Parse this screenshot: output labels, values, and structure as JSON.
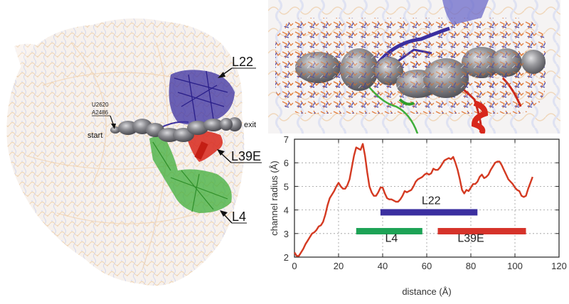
{
  "figure": {
    "left_panel": {
      "description": "Ribosome large subunit structure with exit tunnel channel",
      "labels": {
        "l22": "L22",
        "l39e": "L39E",
        "l4": "L4",
        "start": "start",
        "exit": "exit",
        "residue_1": "U2620",
        "residue_2": "A2486"
      },
      "colors": {
        "rna_orange": "#f2c79a",
        "rna_blue": "#c6cbe6",
        "l22": "#3b2fa0",
        "l39e": "#d8281c",
        "l4": "#3fae3a",
        "tunnel": "#7d7d82"
      }
    },
    "inset_panel": {
      "description": "Close-up of tunnel with surrounding residues"
    }
  },
  "chart_data": {
    "type": "line",
    "title": "",
    "xlabel": "distance (Å)",
    "ylabel": "channel radius (Å)",
    "xlim": [
      0,
      120
    ],
    "ylim": [
      2,
      7
    ],
    "xticks": [
      0,
      20,
      40,
      60,
      80,
      100,
      120
    ],
    "yticks": [
      2,
      3,
      4,
      5,
      6,
      7
    ],
    "grid": true,
    "series": [
      {
        "name": "channel radius",
        "color": "#d43a22",
        "x": [
          0,
          1,
          2,
          3,
          4,
          5,
          6,
          7,
          8,
          9,
          10,
          11,
          12,
          13,
          14,
          15,
          16,
          17,
          18,
          19,
          20,
          21,
          22,
          23,
          24,
          25,
          26,
          27,
          28,
          29,
          30,
          31,
          32,
          33,
          34,
          35,
          36,
          37,
          38,
          39,
          40,
          41,
          42,
          43,
          44,
          45,
          46,
          47,
          48,
          49,
          50,
          51,
          52,
          53,
          54,
          55,
          56,
          57,
          58,
          59,
          60,
          61,
          62,
          63,
          64,
          65,
          66,
          67,
          68,
          69,
          70,
          71,
          72,
          73,
          74,
          75,
          76,
          77,
          78,
          79,
          80,
          81,
          82,
          83,
          84,
          85,
          86,
          87,
          88,
          89,
          90,
          91,
          92,
          93,
          94,
          95,
          96,
          97,
          98,
          99,
          100,
          101,
          102,
          103,
          104,
          105,
          106,
          107,
          108
        ],
        "y": [
          2.2,
          2.05,
          2.05,
          2.2,
          2.35,
          2.55,
          2.7,
          2.85,
          3.0,
          3.05,
          3.15,
          3.3,
          3.35,
          3.5,
          3.8,
          4.2,
          4.5,
          4.65,
          4.8,
          5.0,
          5.15,
          5.0,
          4.9,
          4.9,
          5.05,
          5.3,
          5.8,
          6.3,
          6.65,
          6.6,
          6.55,
          6.8,
          6.3,
          5.6,
          5.0,
          4.75,
          4.6,
          4.6,
          4.75,
          4.95,
          4.95,
          4.7,
          4.5,
          4.45,
          4.45,
          4.4,
          4.35,
          4.35,
          4.45,
          4.6,
          4.8,
          4.75,
          4.8,
          4.85,
          5.0,
          5.2,
          5.3,
          5.35,
          5.4,
          5.5,
          5.55,
          5.5,
          5.55,
          5.75,
          5.7,
          5.7,
          5.8,
          5.95,
          6.1,
          6.15,
          6.2,
          6.15,
          6.25,
          6.0,
          5.7,
          5.3,
          4.85,
          4.7,
          4.85,
          4.8,
          4.95,
          5.1,
          5.1,
          5.2,
          5.4,
          5.5,
          5.35,
          5.4,
          5.5,
          5.7,
          5.85,
          6.0,
          6.05,
          6.05,
          5.9,
          5.7,
          5.5,
          5.3,
          5.2,
          5.1,
          4.95,
          4.85,
          4.8,
          4.6,
          4.55,
          4.6,
          4.9,
          5.15,
          5.4
        ]
      }
    ],
    "annotations": [
      {
        "label": "L22",
        "x_start": 39,
        "x_end": 83,
        "y": 3.9,
        "color": "#3b2fa0",
        "label_x": 62,
        "label_y": 4.25
      },
      {
        "label": "L4",
        "x_start": 28,
        "x_end": 58,
        "y": 3.1,
        "color": "#1da356",
        "label_x": 44,
        "label_y": 2.65
      },
      {
        "label": "L39E",
        "x_start": 65,
        "x_end": 105,
        "y": 3.1,
        "color": "#d6332a",
        "label_x": 80,
        "label_y": 2.65
      }
    ]
  }
}
